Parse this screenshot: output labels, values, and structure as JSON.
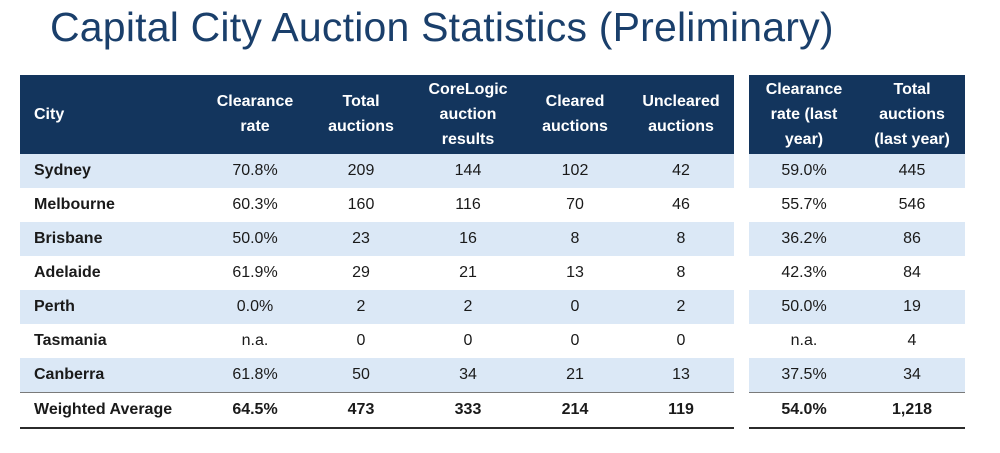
{
  "title": "Capital City Auction Statistics (Preliminary)",
  "main_table": {
    "headers": [
      "City",
      "Clearance rate",
      "Total auctions",
      "CoreLogic auction results",
      "Cleared auctions",
      "Uncleared auctions"
    ],
    "rows": [
      [
        "Sydney",
        "70.8%",
        "209",
        "144",
        "102",
        "42"
      ],
      [
        "Melbourne",
        "60.3%",
        "160",
        "116",
        "70",
        "46"
      ],
      [
        "Brisbane",
        "50.0%",
        "23",
        "16",
        "8",
        "8"
      ],
      [
        "Adelaide",
        "61.9%",
        "29",
        "21",
        "13",
        "8"
      ],
      [
        "Perth",
        "0.0%",
        "2",
        "2",
        "0",
        "2"
      ],
      [
        "Tasmania",
        "n.a.",
        "0",
        "0",
        "0",
        "0"
      ],
      [
        "Canberra",
        "61.8%",
        "50",
        "34",
        "21",
        "13"
      ]
    ],
    "average": [
      "Weighted Average",
      "64.5%",
      "473",
      "333",
      "214",
      "119"
    ]
  },
  "last_year_table": {
    "headers": [
      "Clearance rate (last year)",
      "Total auctions (last year)"
    ],
    "rows": [
      [
        "59.0%",
        "445"
      ],
      [
        "55.7%",
        "546"
      ],
      [
        "36.2%",
        "86"
      ],
      [
        "42.3%",
        "84"
      ],
      [
        "50.0%",
        "19"
      ],
      [
        "n.a.",
        "4"
      ],
      [
        "37.5%",
        "34"
      ]
    ],
    "average": [
      "54.0%",
      "1,218"
    ]
  },
  "colors": {
    "title": "#1a3f6b",
    "header_bg": "#13355d",
    "stripe": "#dbe8f6"
  }
}
